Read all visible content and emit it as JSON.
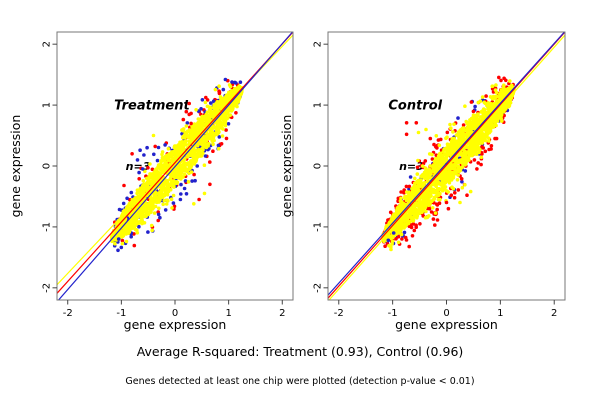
{
  "figure": {
    "caption_r_squared": "Average R-squared: Treatment (0.93), Control (0.96)",
    "caption_note": "Genes detected at least one chip were plotted (detection p-value < 0.01)"
  },
  "chart_data": {
    "type": "scatter",
    "layout": "two side-by-side scatter plots of replicate chip gene expression, identity/regression lines per chip, no grid, no legend",
    "x_axis": {
      "label": "gene expression",
      "range": [
        -2.2,
        2.2
      ],
      "ticks": [
        -2,
        -1,
        0,
        1,
        2
      ]
    },
    "y_axis": {
      "label": "gene expression",
      "range": [
        -2.2,
        2.2
      ],
      "ticks": [
        -2,
        -1,
        0,
        1,
        2
      ]
    },
    "point_radius_px": 1.8,
    "colors": {
      "chip1": "#ff0000",
      "chip2": "#2222cc",
      "chip3": "#ffff00",
      "title_gray": "#7f7f7f",
      "box": "#777777",
      "tick": "#444444"
    },
    "plots": [
      {
        "title": "Treatment",
        "title_pos": [
          -0.43,
          1.0
        ],
        "annotation": "n=3",
        "annotation_pos": [
          -0.92,
          0.0
        ],
        "r_squared": 0.93,
        "xlabel": "gene expression",
        "ylabel": "gene expression",
        "blob": {
          "x_start": -1.18,
          "x_end": 1.25,
          "max_half_width": 0.34,
          "center_line": "y=x"
        },
        "series": [
          {
            "name": "chip1-red-points",
            "color": "#ff0000",
            "count": 140,
            "spread": 2.45,
            "dist": "tri",
            "seed": 7
          },
          {
            "name": "chip2-blue-points",
            "color": "#2222cc",
            "count": 210,
            "spread": 2.3,
            "dist": "tri",
            "seed": 13
          },
          {
            "name": "chip3-yellow-fringe",
            "color": "#ffff00",
            "count": 280,
            "spread": 2.2,
            "dist": "tri",
            "seed": 21
          },
          {
            "name": "chip3-yellow-core",
            "color": "#ffff00",
            "count": 1450,
            "spread": 1.0,
            "dist": "uniform",
            "seed": 42
          }
        ],
        "outliers": [
          {
            "x": -0.65,
            "y": 0.26,
            "color": "#2222cc"
          },
          {
            "x": -0.58,
            "y": 0.18,
            "color": "#2222cc"
          },
          {
            "x": -0.52,
            "y": 0.3,
            "color": "#2222cc"
          },
          {
            "x": -0.7,
            "y": 0.1,
            "color": "#2222cc"
          },
          {
            "x": -0.6,
            "y": -0.05,
            "color": "#2222cc"
          },
          {
            "x": 0.1,
            "y": -0.55,
            "color": "#2222cc"
          },
          {
            "x": -1.05,
            "y": -1.2,
            "color": "#2222cc"
          },
          {
            "x": -0.95,
            "y": -0.32,
            "color": "#ff0000"
          },
          {
            "x": -0.8,
            "y": 0.2,
            "color": "#ff0000"
          },
          {
            "x": 0.45,
            "y": -0.55,
            "color": "#ff0000"
          },
          {
            "x": 0.65,
            "y": -0.3,
            "color": "#ff0000"
          },
          {
            "x": 0.3,
            "y": 0.7,
            "color": "#ff0000"
          },
          {
            "x": -0.4,
            "y": 0.5,
            "color": "#ffff00"
          },
          {
            "x": 0.35,
            "y": -0.62,
            "color": "#ffff00"
          },
          {
            "x": 0.55,
            "y": -0.45,
            "color": "#ffff00"
          },
          {
            "x": 0.15,
            "y": 0.6,
            "color": "#ffff00"
          }
        ],
        "regression_lines": [
          {
            "name": "chip3-fit",
            "color": "#ffff00",
            "y_at_xmin": -1.95,
            "y_at_xmax": 2.15
          },
          {
            "name": "chip1-fit",
            "color": "#ff0000",
            "y_at_xmin": -2.09,
            "y_at_xmax": 2.2
          },
          {
            "name": "chip2-fit",
            "color": "#2222cc",
            "y_at_xmin": -2.23,
            "y_at_xmax": 2.21
          }
        ]
      },
      {
        "title": "Control",
        "title_pos": [
          -0.58,
          1.0
        ],
        "annotation": "n=3",
        "annotation_pos": [
          -0.88,
          0.0
        ],
        "r_squared": 0.96,
        "xlabel": "gene expression",
        "ylabel": "gene expression",
        "blob": {
          "x_start": -1.18,
          "x_end": 1.25,
          "max_half_width": 0.34,
          "center_line": "y=x"
        },
        "series": [
          {
            "name": "chip2-blue-points",
            "color": "#2222cc",
            "count": 130,
            "spread": 2.1,
            "dist": "tri",
            "seed": 57
          },
          {
            "name": "chip1-red-points",
            "color": "#ff0000",
            "count": 380,
            "spread": 2.5,
            "dist": "tri",
            "seed": 63
          },
          {
            "name": "chip3-yellow-fringe",
            "color": "#ffff00",
            "count": 280,
            "spread": 2.2,
            "dist": "tri",
            "seed": 71
          },
          {
            "name": "chip3-yellow-core",
            "color": "#ffff00",
            "count": 1450,
            "spread": 1.0,
            "dist": "uniform",
            "seed": 99
          }
        ],
        "outliers": [
          {
            "x": -0.74,
            "y": 0.71,
            "color": "#ff0000"
          },
          {
            "x": -0.56,
            "y": 0.71,
            "color": "#ff0000"
          },
          {
            "x": -0.74,
            "y": 0.52,
            "color": "#ff0000"
          },
          {
            "x": -0.3,
            "y": 0.45,
            "color": "#ff0000"
          },
          {
            "x": 0.15,
            "y": -0.52,
            "color": "#ff0000"
          },
          {
            "x": 0.38,
            "y": -0.48,
            "color": "#ff0000"
          },
          {
            "x": 0.0,
            "y": -0.6,
            "color": "#ff0000"
          },
          {
            "x": -0.52,
            "y": 0.55,
            "color": "#ffff00"
          },
          {
            "x": -0.38,
            "y": 0.6,
            "color": "#ffff00"
          },
          {
            "x": 0.25,
            "y": -0.6,
            "color": "#ffff00"
          },
          {
            "x": 0.45,
            "y": -0.42,
            "color": "#ffff00"
          },
          {
            "x": -0.15,
            "y": -0.55,
            "color": "#ffff00"
          },
          {
            "x": -1.08,
            "y": -1.22,
            "color": "#2222cc"
          },
          {
            "x": -0.98,
            "y": -1.1,
            "color": "#2222cc"
          }
        ],
        "regression_lines": [
          {
            "name": "chip3-fit",
            "color": "#ffff00",
            "y_at_xmin": -2.22,
            "y_at_xmax": 2.15
          },
          {
            "name": "chip1-fit",
            "color": "#ff0000",
            "y_at_xmin": -2.17,
            "y_at_xmax": 2.2
          },
          {
            "name": "chip2-fit",
            "color": "#2222cc",
            "y_at_xmin": -2.12,
            "y_at_xmax": 2.21
          }
        ]
      }
    ]
  }
}
